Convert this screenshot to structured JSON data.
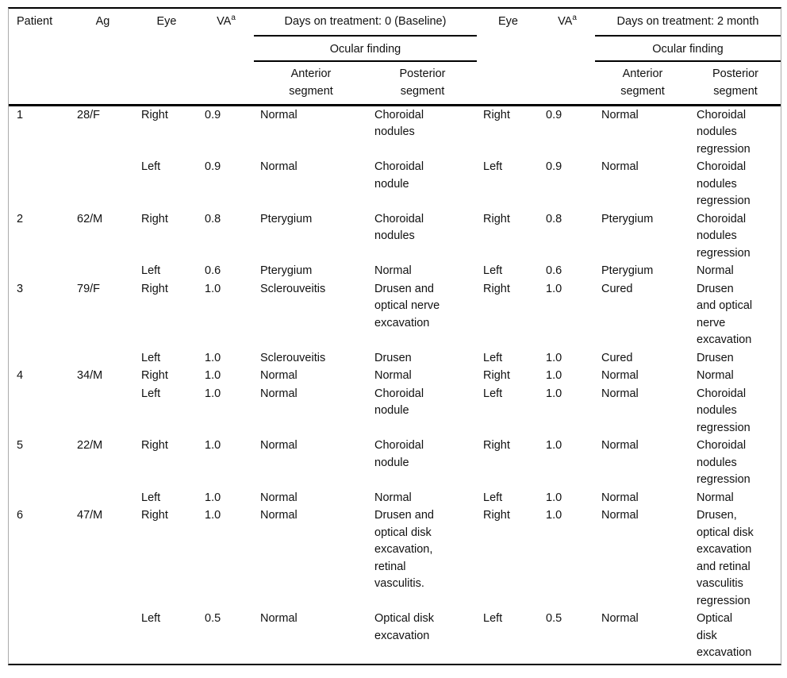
{
  "table": {
    "header": {
      "patient": "Patient",
      "ag": "Ag",
      "eye": "Eye",
      "va": "VA",
      "va_sup": "a",
      "baseline_group": "Days on treatment: 0 (Baseline)",
      "month2_group": "Days on treatment: 2 month",
      "ocular_finding": "Ocular finding",
      "anterior": "Anterior\nsegment",
      "posterior": "Posterior\nsegment"
    },
    "rows": [
      [
        "1",
        "28/F",
        "Right",
        "0.9",
        "Normal",
        "Choroidal\nnodules",
        "Right",
        "0.9",
        "Normal",
        "Choroidal\nnodules\nregression"
      ],
      [
        "",
        "",
        "Left",
        "0.9",
        "Normal",
        "Choroidal\nnodule",
        "Left",
        "0.9",
        "Normal",
        "Choroidal\nnodules\nregression"
      ],
      [
        "2",
        "62/M",
        "Right",
        "0.8",
        "Pterygium",
        "Choroidal\nnodules",
        "Right",
        "0.8",
        "Pterygium",
        "Choroidal\nnodules\nregression"
      ],
      [
        "",
        "",
        "Left",
        "0.6",
        "Pterygium",
        "Normal",
        "Left",
        "0.6",
        "Pterygium",
        "Normal"
      ],
      [
        "3",
        "79/F",
        "Right",
        "1.0",
        "Sclerouveitis",
        "Drusen and\noptical nerve\nexcavation",
        "Right",
        "1.0",
        "Cured",
        "Drusen\nand optical\nnerve\nexcavation"
      ],
      [
        "",
        "",
        "Left",
        "1.0",
        "Sclerouveitis",
        "Drusen",
        "Left",
        "1.0",
        "Cured",
        "Drusen"
      ],
      [
        "4",
        "34/M",
        "Right",
        "1.0",
        "Normal",
        "Normal",
        "Right",
        "1.0",
        "Normal",
        "Normal"
      ],
      [
        "",
        "",
        "Left",
        "1.0",
        "Normal",
        "Choroidal\nnodule",
        "Left",
        "1.0",
        "Normal",
        "Choroidal\nnodules\nregression"
      ],
      [
        "5",
        "22/M",
        "Right",
        "1.0",
        "Normal",
        "Choroidal\nnodule",
        "Right",
        "1.0",
        "Normal",
        "Choroidal\nnodules\nregression"
      ],
      [
        "",
        "",
        "Left",
        "1.0",
        "Normal",
        "Normal",
        "Left",
        "1.0",
        "Normal",
        "Normal"
      ],
      [
        "6",
        "47/M",
        "Right",
        "1.0",
        "Normal",
        "Drusen and\noptical disk\nexcavation,\nretinal\nvasculitis.",
        "Right",
        "1.0",
        "Normal",
        "Drusen,\noptical disk\nexcavation\nand retinal\nvasculitis\nregression"
      ],
      [
        "",
        "",
        "Left",
        "0.5",
        "Normal",
        "Optical disk\nexcavation",
        "Left",
        "0.5",
        "Normal",
        "Optical\ndisk\nexcavation"
      ]
    ],
    "colors": {
      "rule_color": "#000000",
      "side_border_color": "#ababab",
      "text_color": "#111111",
      "background": "#ffffff"
    }
  }
}
